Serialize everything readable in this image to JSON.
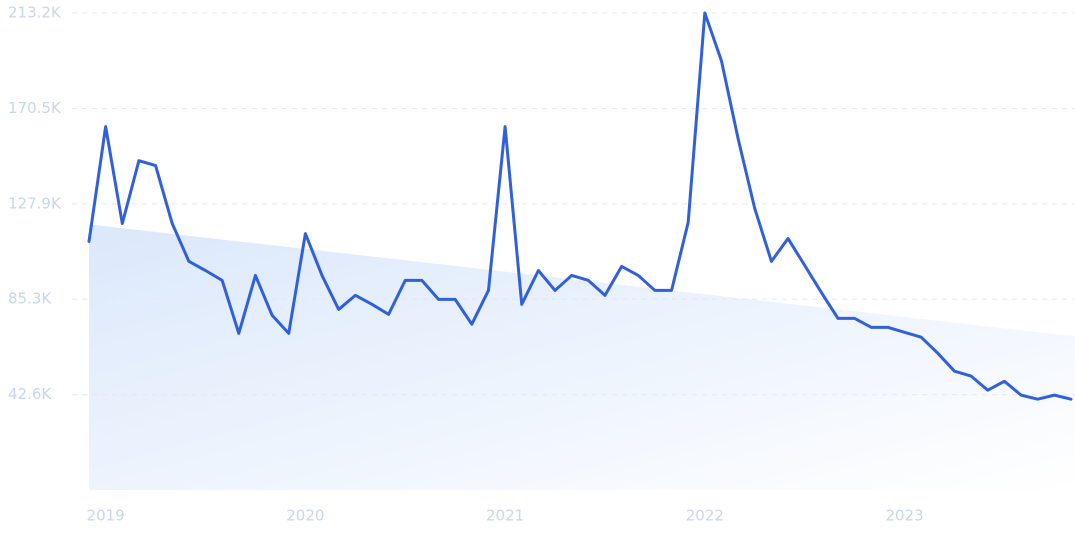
{
  "chart_data": {
    "type": "line",
    "categories": [
      null,
      "2019",
      null,
      null,
      null,
      null,
      null,
      null,
      null,
      null,
      null,
      null,
      null,
      "2020",
      null,
      null,
      null,
      null,
      null,
      null,
      null,
      null,
      null,
      null,
      null,
      "2021",
      null,
      null,
      null,
      null,
      null,
      null,
      null,
      null,
      null,
      null,
      null,
      "2022",
      null,
      null,
      null,
      null,
      null,
      null,
      null,
      null,
      null,
      null,
      null,
      "2023",
      null,
      null,
      null,
      null,
      null,
      null,
      null,
      null,
      null,
      null
    ],
    "values": [
      111100,
      162400,
      119100,
      147200,
      145000,
      119100,
      102200,
      98100,
      93700,
      70000,
      95900,
      78100,
      70000,
      114600,
      95900,
      80700,
      87000,
      83000,
      78500,
      93700,
      93700,
      85200,
      85200,
      74100,
      89200,
      162400,
      83000,
      98100,
      89200,
      95900,
      93700,
      87000,
      99900,
      95900,
      89200,
      89200,
      119600,
      213200,
      191800,
      157000,
      125800,
      102200,
      112400,
      100400,
      88300,
      76700,
      76700,
      72700,
      72700,
      70500,
      68300,
      61100,
      53100,
      50900,
      44600,
      48600,
      42400,
      40600,
      42400,
      40600
    ],
    "color": "#3060de",
    "trend": {
      "values": [
        118700,
        68700
      ],
      "color": "#dbe8fb"
    },
    "ylim": [
      0,
      213200
    ],
    "yticks": [
      {
        "value": 42600,
        "label": "42.6K"
      },
      {
        "value": 85300,
        "label": "85.3K"
      },
      {
        "value": 127900,
        "label": "127.9K"
      },
      {
        "value": 170500,
        "label": "170.5K"
      },
      {
        "value": 213200,
        "label": "213.2K"
      }
    ],
    "grid": true
  }
}
